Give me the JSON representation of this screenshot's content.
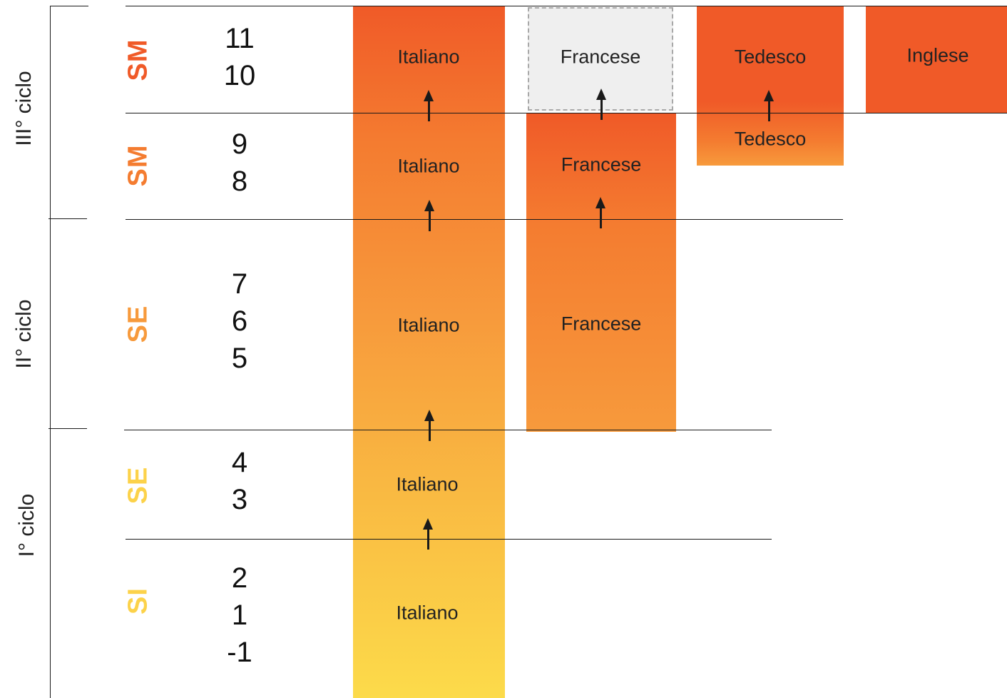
{
  "cycles": [
    {
      "label": "III° ciclo"
    },
    {
      "label": "II° ciclo"
    },
    {
      "label": "I° ciclo"
    }
  ],
  "schools": [
    {
      "label": "SM",
      "color": "#f05a28"
    },
    {
      "label": "SM",
      "color": "#f47c30"
    },
    {
      "label": "SE",
      "color": "#f79a3c"
    },
    {
      "label": "SE",
      "color": "#fcd24a"
    },
    {
      "label": "SI",
      "color": "#fcd24a"
    }
  ],
  "grades": [
    [
      "11",
      "10"
    ],
    [
      "9",
      "8"
    ],
    [
      "7",
      "6",
      "5"
    ],
    [
      "4",
      "3"
    ],
    [
      "2",
      "1",
      "-1"
    ]
  ],
  "languages": {
    "italiano": [
      "Italiano",
      "Italiano",
      "Italiano",
      "Italiano",
      "Italiano"
    ],
    "francese": [
      "Francese",
      "Francese",
      "Francese"
    ],
    "tedesco": [
      "Tedesco",
      "Tedesco"
    ],
    "inglese": [
      "Inglese"
    ]
  },
  "colors": {
    "orange_dark": "#f05a28",
    "orange_mid": "#f47c30",
    "orange_light": "#f7a23e",
    "yellow": "#fcdb4a",
    "optional_fill": "#efefef",
    "optional_border": "#a8a8a8"
  }
}
